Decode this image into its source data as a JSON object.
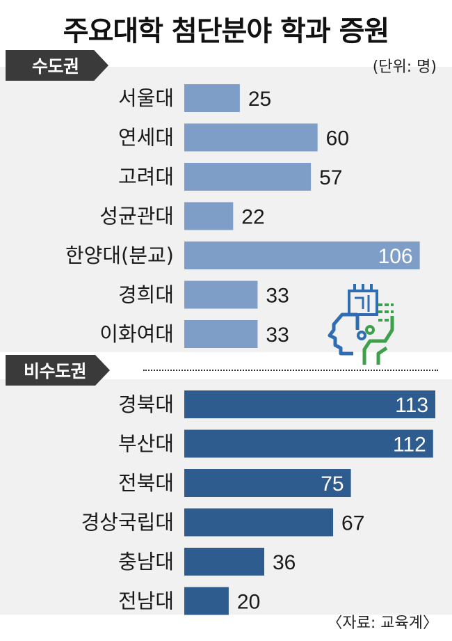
{
  "title": "주요대학 첨단분야 학과 증원",
  "unit": "(단위: 명)",
  "source": "〈자료: 교육계〉",
  "colors": {
    "capital_bar": "#7e9dc7",
    "noncapital_bar": "#2f5c8e",
    "logo_blue": "#2f6db3",
    "logo_green": "#3ea04a"
  },
  "logo_icon": "ai-head-circuit-icon",
  "chart_data": {
    "type": "bar",
    "orientation": "horizontal",
    "groups": [
      {
        "name": "수도권",
        "categories": [
          "서울대",
          "연세대",
          "고려대",
          "성균관대",
          "한양대(분교)",
          "경희대",
          "이화여대"
        ],
        "values": [
          25,
          60,
          57,
          22,
          106,
          33,
          33
        ]
      },
      {
        "name": "비수도권",
        "categories": [
          "경북대",
          "부산대",
          "전북대",
          "경상국립대",
          "충남대",
          "전남대"
        ],
        "values": [
          113,
          112,
          75,
          67,
          36,
          20
        ]
      }
    ],
    "xlim": [
      0,
      113
    ]
  }
}
